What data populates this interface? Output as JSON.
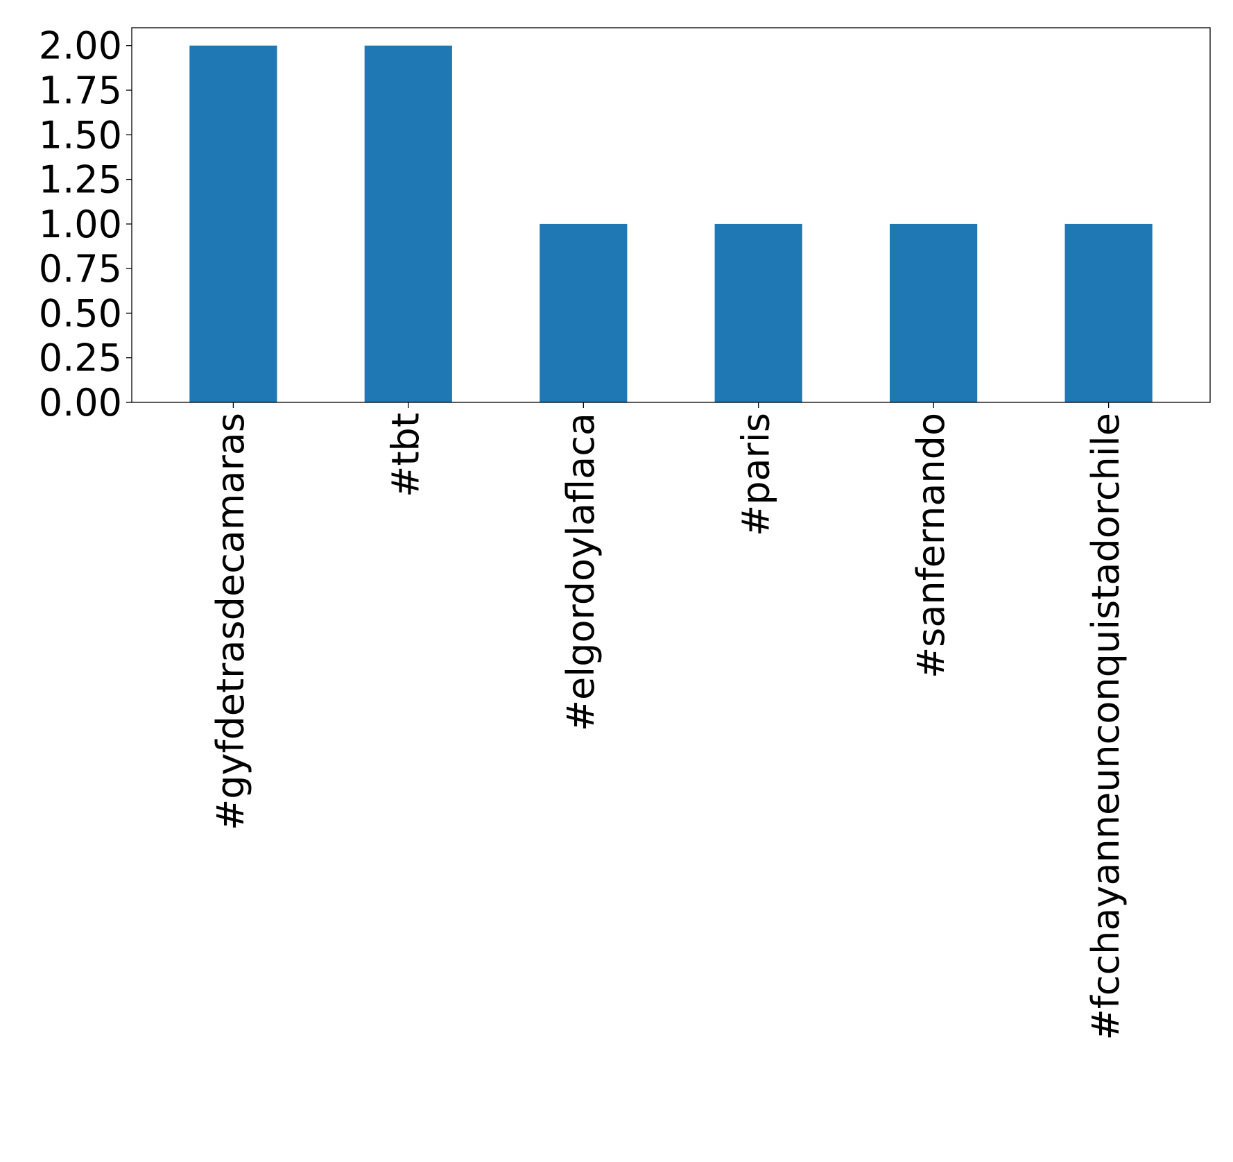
{
  "chart_data": {
    "type": "bar",
    "categories": [
      "#gyfdetrasdecamaras",
      "#tbt",
      "#elgordoylaflaca",
      "#paris",
      "#sanfernando",
      "#fcchayanneunconquistadorchile"
    ],
    "values": [
      2,
      2,
      1,
      1,
      1,
      1
    ],
    "ylim": [
      0,
      2.1
    ],
    "yticks": [
      "0.00",
      "0.25",
      "0.50",
      "0.75",
      "1.00",
      "1.25",
      "1.50",
      "1.75",
      "2.00"
    ],
    "title": "",
    "xlabel": "",
    "ylabel": "",
    "grid": false,
    "legend": "none",
    "bar_color": "#1f77b4"
  }
}
